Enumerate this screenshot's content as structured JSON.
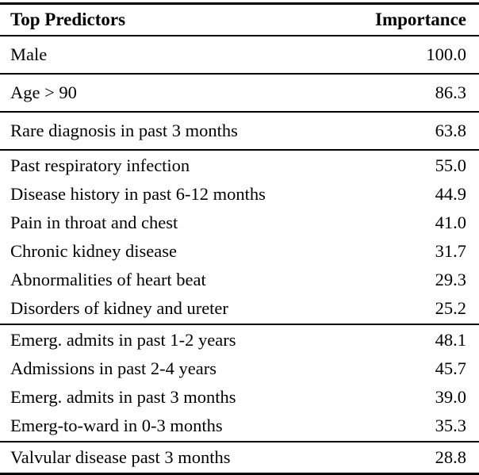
{
  "table": {
    "columns": [
      "Top Predictors",
      "Importance"
    ],
    "sections": [
      {
        "rows": [
          {
            "predictor": "Male",
            "importance": "100.0"
          }
        ]
      },
      {
        "rows": [
          {
            "predictor": "Age > 90",
            "importance": "86.3"
          }
        ]
      },
      {
        "rows": [
          {
            "predictor": "Rare diagnosis in past 3 months",
            "importance": "63.8"
          }
        ]
      },
      {
        "rows": [
          {
            "predictor": "Past respiratory infection",
            "importance": "55.0"
          },
          {
            "predictor": "Disease history in past 6-12 months",
            "importance": "44.9"
          },
          {
            "predictor": "Pain in throat and chest",
            "importance": "41.0"
          },
          {
            "predictor": "Chronic kidney disease",
            "importance": "31.7"
          },
          {
            "predictor": "Abnormalities of heart beat",
            "importance": "29.3"
          },
          {
            "predictor": "Disorders of kidney and ureter",
            "importance": "25.2"
          }
        ]
      },
      {
        "rows": [
          {
            "predictor": "Emerg. admits in past 1-2 years",
            "importance": "48.1"
          },
          {
            "predictor": "Admissions in past 2-4 years",
            "importance": "45.7"
          },
          {
            "predictor": "Emerg. admits in past 3 months",
            "importance": "39.0"
          },
          {
            "predictor": "Emerg-to-ward in 0-3 months",
            "importance": "35.3"
          }
        ]
      },
      {
        "rows": [
          {
            "predictor": "Valvular disease past 3 months",
            "importance": "28.8"
          }
        ]
      }
    ],
    "colors": {
      "text": "#000000",
      "background": "#ffffff",
      "rule": "#000000"
    }
  },
  "chart_data": {
    "type": "table",
    "title": "",
    "columns": [
      "Top Predictors",
      "Importance"
    ],
    "rows": [
      [
        "Male",
        100.0
      ],
      [
        "Age > 90",
        86.3
      ],
      [
        "Rare diagnosis in past 3 months",
        63.8
      ],
      [
        "Past respiratory infection",
        55.0
      ],
      [
        "Disease history in past 6-12 months",
        44.9
      ],
      [
        "Pain in throat and chest",
        41.0
      ],
      [
        "Chronic kidney disease",
        31.7
      ],
      [
        "Abnormalities of heart beat",
        29.3
      ],
      [
        "Disorders of kidney and ureter",
        25.2
      ],
      [
        "Emerg. admits in past 1-2 years",
        48.1
      ],
      [
        "Admissions in past 2-4 years",
        45.7
      ],
      [
        "Emerg. admits in past 3 months",
        39.0
      ],
      [
        "Emerg-to-ward in 0-3 months",
        35.3
      ],
      [
        "Valvular disease past 3 months",
        28.8
      ]
    ]
  }
}
